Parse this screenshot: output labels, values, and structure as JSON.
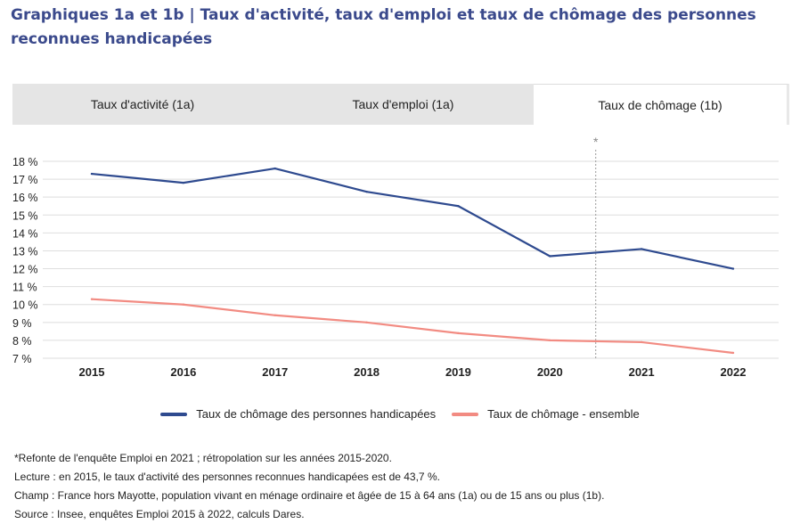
{
  "title": "Graphiques 1a et 1b | Taux d'activité, taux d'emploi et taux de chômage des personnes reconnues handicapées",
  "tabs": [
    {
      "label": "Taux d'activité (1a)",
      "active": false
    },
    {
      "label": "Taux d'emploi (1a)",
      "active": false
    },
    {
      "label": "Taux de chômage (1b)",
      "active": true
    }
  ],
  "chart_data": {
    "type": "line",
    "title": "",
    "xlabel": "",
    "ylabel": "",
    "x": [
      "2015",
      "2016",
      "2017",
      "2018",
      "2019",
      "2020",
      "2021",
      "2022"
    ],
    "y_ticks": [
      "18 %",
      "17 %",
      "16 %",
      "15 %",
      "14 %",
      "13 %",
      "12 %",
      "11 %",
      "10 %",
      "9 %",
      "8 %",
      "7 %"
    ],
    "ylim": [
      7,
      18
    ],
    "grid": true,
    "legend_position": "bottom",
    "annotation": {
      "label": "*",
      "between": [
        "2020",
        "2021"
      ]
    },
    "series": [
      {
        "name": "Taux de chômage des personnes handicapées",
        "color": "#2e4a8f",
        "values": [
          17.3,
          16.8,
          17.6,
          16.3,
          15.5,
          12.7,
          13.1,
          12.0
        ]
      },
      {
        "name": "Taux de chômage - ensemble",
        "color": "#f28b82",
        "values": [
          10.3,
          10.0,
          9.4,
          9.0,
          8.4,
          8.0,
          7.9,
          7.3
        ]
      }
    ]
  },
  "notes": [
    "*Refonte de l'enquête Emploi en 2021 ; rétropolation sur les années 2015-2020.",
    "Lecture : en 2015, le taux d'activité des personnes reconnues handicapées est de 43,7 %.",
    "Champ : France hors Mayotte, population vivant en ménage ordinaire et âgée de 15 à 64 ans (1a) ou de 15 ans ou plus (1b).",
    "Source : Insee, enquêtes Emploi 2015 à 2022, calculs Dares."
  ]
}
